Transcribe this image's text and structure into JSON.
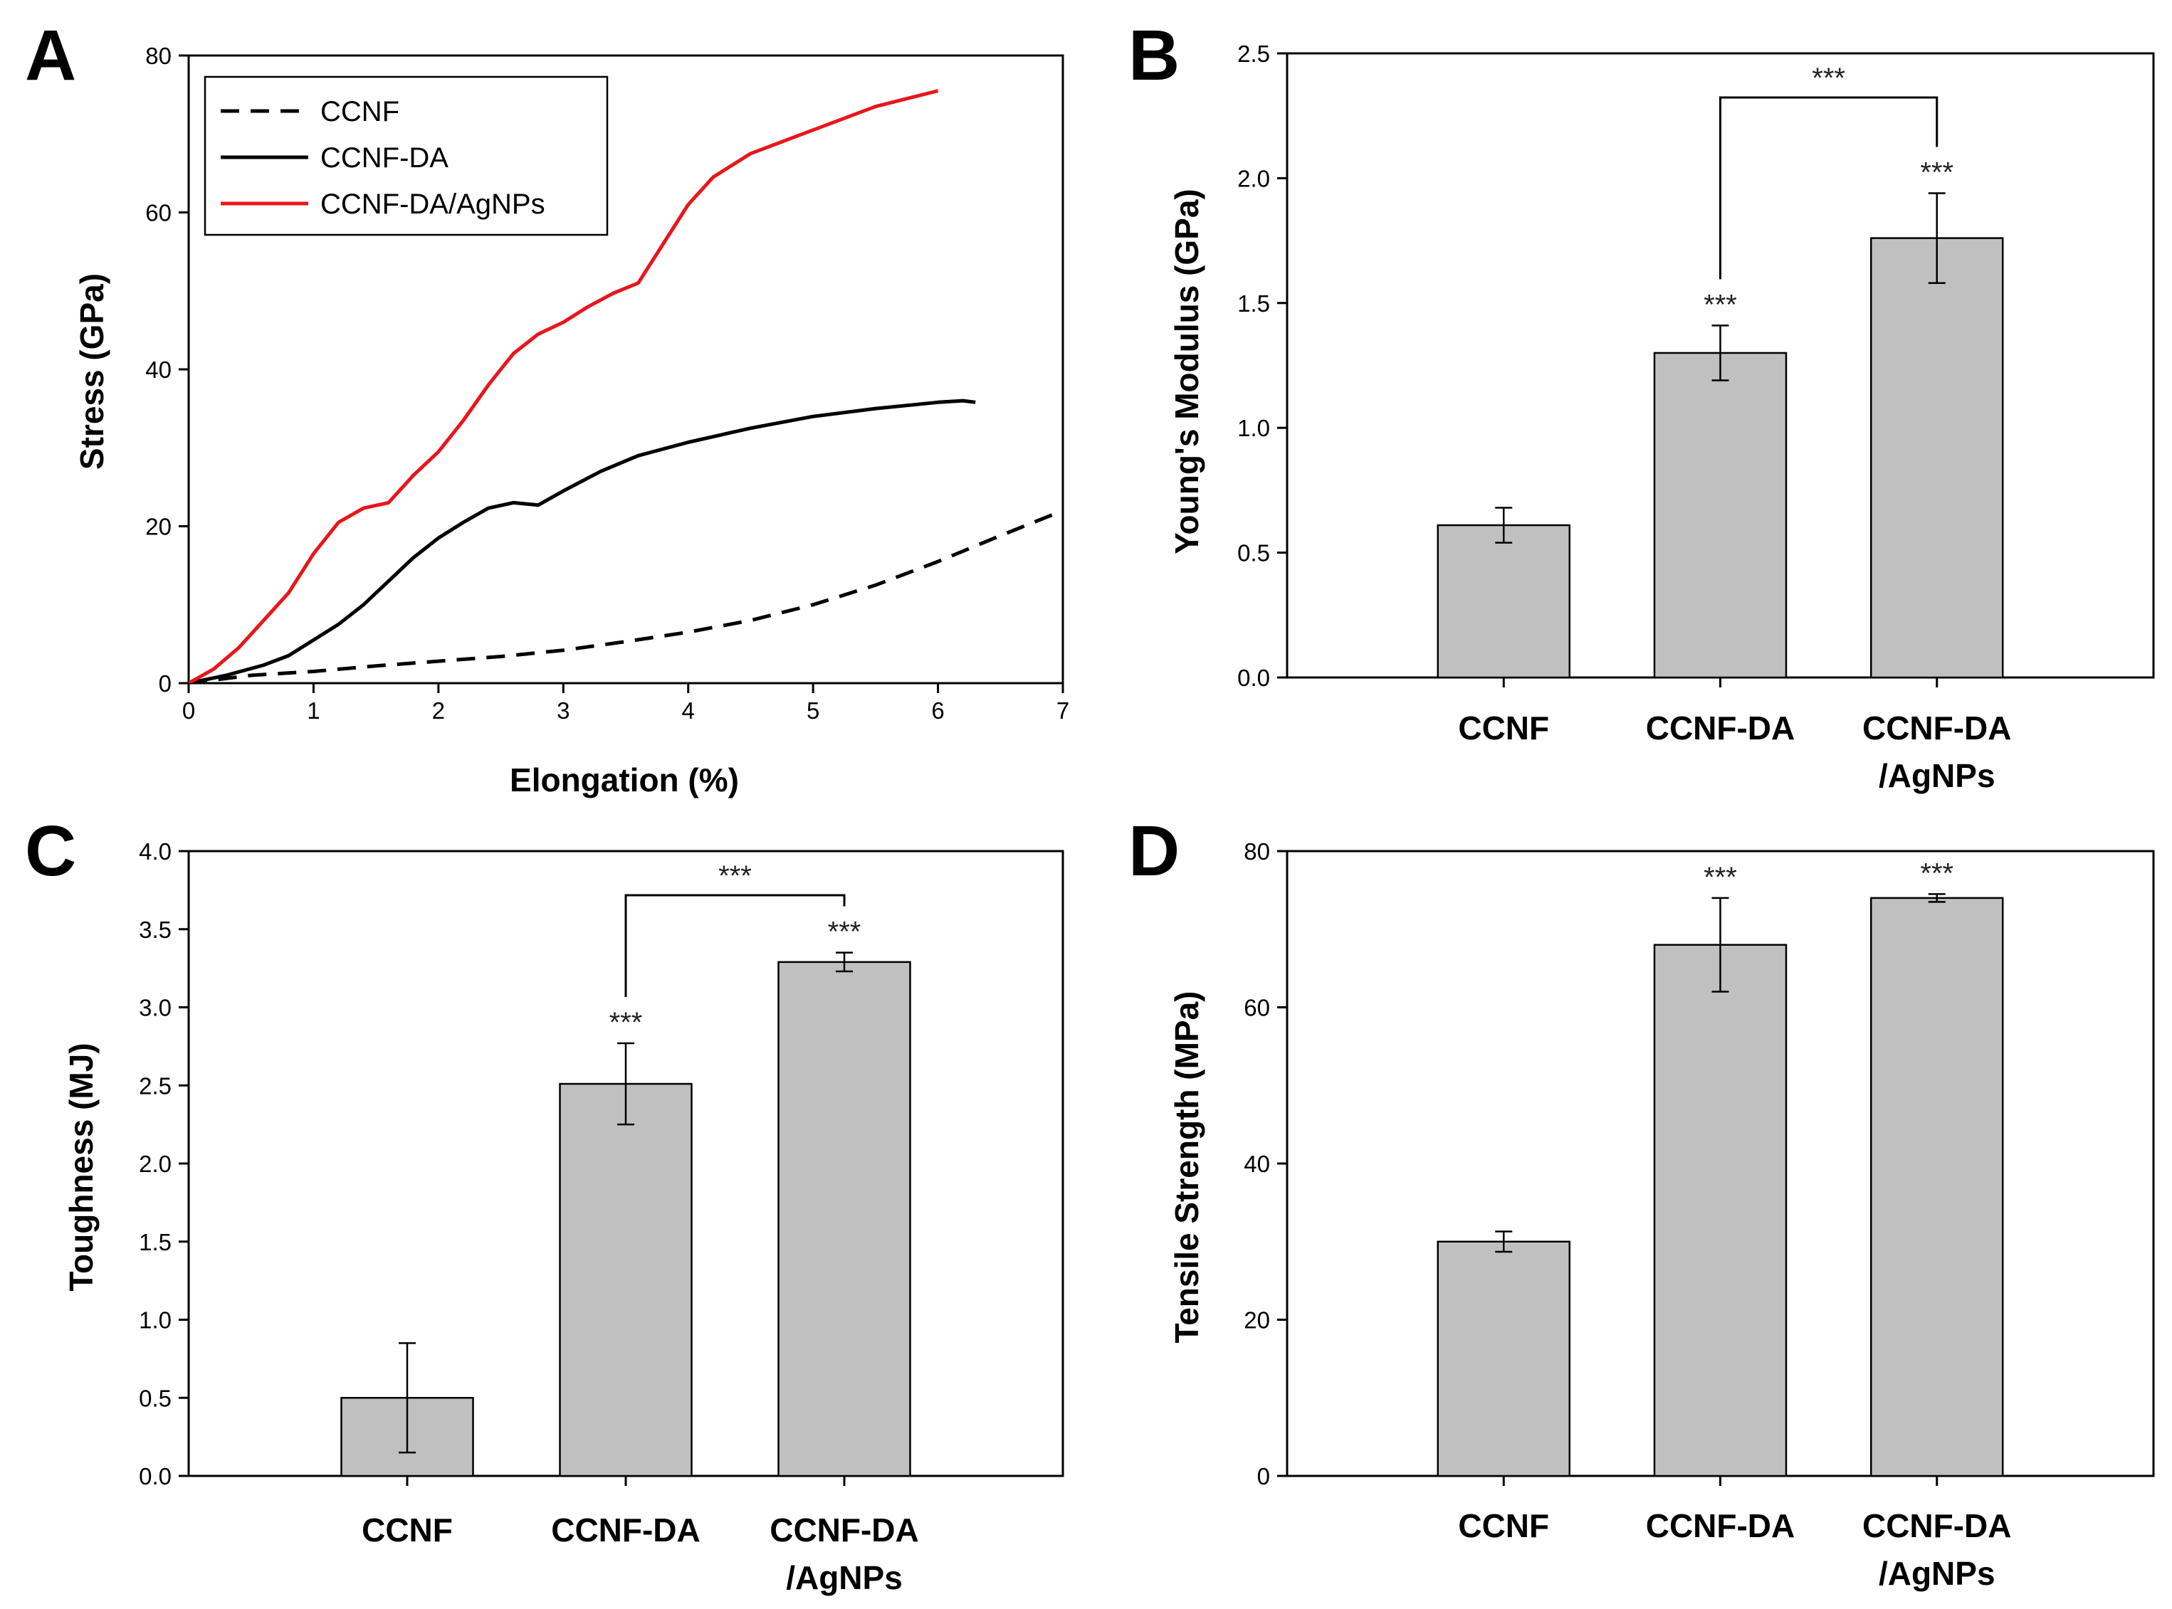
{
  "chart_data": [
    {
      "panel": "A",
      "type": "line",
      "xlabel": "Elongation (%)",
      "ylabel": "Stress (GPa)",
      "xlim": [
        0,
        7
      ],
      "ylim": [
        0,
        80
      ],
      "xticks": [
        0,
        1,
        2,
        3,
        4,
        5,
        6,
        7
      ],
      "yticks": [
        0,
        20,
        40,
        60,
        80
      ],
      "legend_position": "top-left",
      "series": [
        {
          "name": "CCNF",
          "color": "#000000",
          "style": "dashed",
          "x": [
            0,
            0.5,
            1,
            1.5,
            2,
            2.5,
            3,
            3.5,
            4,
            4.5,
            5,
            5.5,
            6,
            6.5,
            7
          ],
          "y": [
            0,
            1.0,
            1.5,
            2.2,
            2.8,
            3.4,
            4.2,
            5.3,
            6.5,
            8.0,
            10.0,
            12.5,
            15.5,
            18.8,
            22.0
          ]
        },
        {
          "name": "CCNF-DA",
          "color": "#000000",
          "style": "solid",
          "x": [
            0,
            0.3,
            0.6,
            0.8,
            1.0,
            1.2,
            1.4,
            1.6,
            1.8,
            2.0,
            2.2,
            2.4,
            2.6,
            2.8,
            3.0,
            3.3,
            3.6,
            4.0,
            4.5,
            5.0,
            5.5,
            6.0,
            6.2,
            6.3
          ],
          "y": [
            0,
            1.0,
            2.3,
            3.5,
            5.5,
            7.5,
            10.0,
            13.0,
            16.0,
            18.5,
            20.5,
            22.3,
            23.0,
            22.7,
            24.5,
            27.0,
            29.0,
            30.7,
            32.5,
            34.0,
            35.0,
            35.8,
            36.0,
            35.8
          ]
        },
        {
          "name": "CCNF-DA/AgNPs",
          "color": "#e8161c",
          "style": "solid",
          "x": [
            0,
            0.2,
            0.4,
            0.6,
            0.8,
            1.0,
            1.2,
            1.4,
            1.6,
            1.8,
            2.0,
            2.2,
            2.4,
            2.6,
            2.8,
            3.0,
            3.2,
            3.4,
            3.6,
            3.8,
            4.0,
            4.2,
            4.5,
            5.0,
            5.5,
            6.0
          ],
          "y": [
            0,
            1.8,
            4.5,
            8.0,
            11.5,
            16.5,
            20.5,
            22.3,
            23.0,
            26.5,
            29.5,
            33.5,
            38.0,
            42.0,
            44.5,
            46.0,
            48.0,
            49.7,
            51.0,
            56.0,
            61.0,
            64.5,
            67.5,
            70.5,
            73.5,
            75.5
          ]
        }
      ]
    },
    {
      "panel": "B",
      "type": "bar",
      "ylabel": "Young's Modulus (GPa)",
      "ylim": [
        0,
        2.5
      ],
      "yticks": [
        "0.0",
        "0.5",
        "1.0",
        "1.5",
        "2.0",
        "2.5"
      ],
      "categories": [
        {
          "line1": "CCNF",
          "line2": ""
        },
        {
          "line1": "CCNF-DA",
          "line2": ""
        },
        {
          "line1": "CCNF-DA",
          "line2": "/AgNPs"
        }
      ],
      "values": [
        0.61,
        1.3,
        1.76
      ],
      "errors": [
        0.07,
        0.11,
        0.18
      ],
      "significance": [
        "",
        "***",
        "***"
      ],
      "bracket": {
        "from": 1,
        "to": 2,
        "label": "***"
      }
    },
    {
      "panel": "C",
      "type": "bar",
      "ylabel": "Toughness (MJ)",
      "ylim": [
        0,
        4
      ],
      "yticks": [
        "0.0",
        "0.5",
        "1.0",
        "1.5",
        "2.0",
        "2.5",
        "3.0",
        "3.5",
        "4.0"
      ],
      "categories": [
        {
          "line1": "CCNF",
          "line2": ""
        },
        {
          "line1": "CCNF-DA",
          "line2": ""
        },
        {
          "line1": "CCNF-DA",
          "line2": "/AgNPs"
        }
      ],
      "values": [
        0.5,
        2.51,
        3.29
      ],
      "errors": [
        0.35,
        0.26,
        0.06
      ],
      "significance": [
        "",
        "***",
        "***"
      ],
      "bracket": {
        "from": 1,
        "to": 2,
        "label": "***"
      }
    },
    {
      "panel": "D",
      "type": "bar",
      "ylabel": "Tensile Strength (MPa)",
      "ylim": [
        0,
        80
      ],
      "yticks": [
        "0",
        "20",
        "40",
        "60",
        "80"
      ],
      "categories": [
        {
          "line1": "CCNF",
          "line2": ""
        },
        {
          "line1": "CCNF-DA",
          "line2": ""
        },
        {
          "line1": "CCNF-DA",
          "line2": "/AgNPs"
        }
      ],
      "values": [
        30.0,
        68.0,
        74.0
      ],
      "errors": [
        1.3,
        6.0,
        0.5
      ],
      "significance": [
        "",
        "***",
        "***"
      ],
      "bracket": null
    }
  ]
}
